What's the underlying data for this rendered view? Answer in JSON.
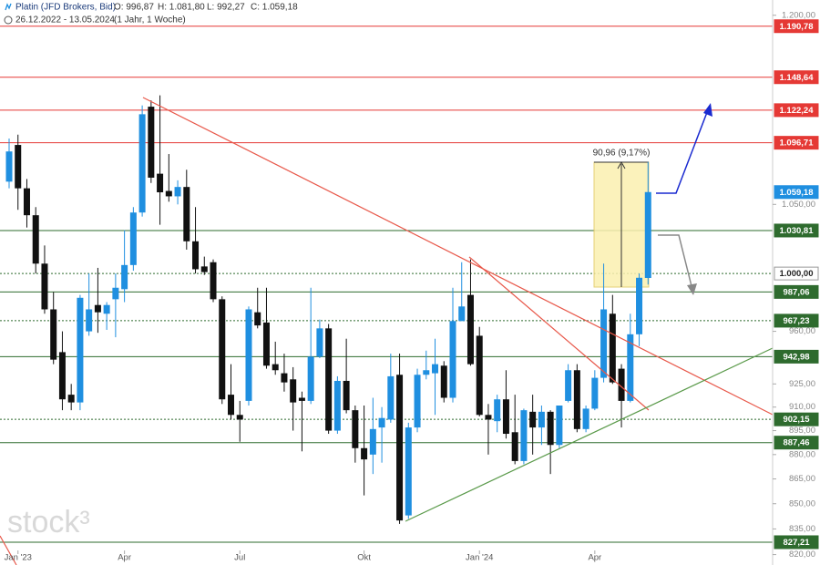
{
  "header": {
    "title": "Platin (JFD Brokers, Bid)",
    "open": "O: 996,87",
    "high": "H: 1.081,80",
    "low": "L: 992,27",
    "close": "C: 1.059,18",
    "range": "26.12.2022 - 13.05.2024",
    "period": "(1 Jahr, 1 Woche)"
  },
  "watermark": "stock³",
  "measure_label": "90,96 (9,17%)",
  "chart_data": {
    "type": "candlestick",
    "log_scale": true,
    "grid": false,
    "up_color": "#1f8fe0",
    "down_color": "#111111",
    "open": [
      1067,
      1095,
      1062,
      1042,
      1007,
      975,
      946,
      918,
      913,
      960,
      978,
      972,
      982,
      989,
      1006,
      1044,
      1125,
      1073,
      1060,
      1056,
      1063,
      1023,
      1005,
      1008,
      982,
      918,
      905,
      914,
      973,
      966,
      938,
      932,
      928,
      916,
      914,
      943,
      962,
      895,
      927,
      908,
      884,
      880,
      897,
      902,
      931,
      843,
      897,
      931,
      932,
      937,
      916,
      967,
      985,
      957,
      905,
      901,
      915,
      894,
      876,
      907,
      897,
      907,
      886,
      914,
      934,
      896,
      909,
      929,
      972,
      935,
      914,
      958,
      996.87
    ],
    "high": [
      1100,
      1103,
      1069,
      1048,
      1020,
      987,
      960,
      925,
      985,
      1000,
      1004,
      980,
      1000,
      1031,
      1048,
      1126,
      1130,
      1134,
      1088,
      1068,
      1076,
      1048,
      1012,
      1010,
      984,
      938,
      914,
      977,
      990,
      990,
      953,
      945,
      936,
      920,
      990,
      968,
      965,
      930,
      955,
      911,
      911,
      916,
      910,
      945,
      945,
      900,
      935,
      947,
      955,
      940,
      990,
      1008,
      1010,
      963,
      912,
      918,
      934,
      918,
      909,
      918,
      911,
      908,
      911,
      938,
      938,
      911,
      934,
      1007,
      985,
      938,
      972,
      1000,
      1081.8
    ],
    "low": [
      1062,
      1046,
      1033,
      1000,
      972,
      938,
      908,
      908,
      908,
      957,
      959,
      961,
      956,
      980,
      1002,
      1041,
      1066,
      1035,
      1052,
      1050,
      1017,
      1000,
      999,
      980,
      912,
      902,
      888,
      911,
      962,
      935,
      931,
      920,
      895,
      882,
      912,
      942,
      893,
      893,
      906,
      875,
      855,
      868,
      875,
      900,
      838,
      841,
      894,
      928,
      905,
      913,
      913,
      967,
      937,
      904,
      880,
      894,
      890,
      874,
      874,
      880,
      886,
      868,
      884,
      913,
      894,
      894,
      908,
      926,
      925,
      897,
      913,
      950,
      992.27
    ],
    "close": [
      1090,
      1062,
      1042,
      1007,
      975,
      941,
      915,
      913,
      983,
      975,
      973,
      978,
      990,
      1006,
      1044,
      1119,
      1070,
      1059,
      1056,
      1063,
      1023,
      1003,
      1001,
      982,
      915,
      905,
      902,
      975,
      964,
      937,
      934,
      926,
      913,
      914,
      943,
      962,
      895,
      927,
      908,
      884,
      877,
      896,
      903,
      930,
      840,
      897,
      931,
      934,
      938,
      916,
      967,
      977,
      938,
      905,
      902,
      915,
      893,
      876,
      908,
      897,
      907,
      886,
      911,
      934,
      896,
      909,
      929,
      975,
      926,
      914,
      958,
      997,
      1059.18
    ],
    "ylim": [
      814,
      1213
    ],
    "yticks": [
      {
        "value": 1200,
        "label": "1.200,00"
      },
      {
        "value": 1050,
        "label": "1.050,00"
      },
      {
        "value": 960,
        "label": "960,00"
      },
      {
        "value": 925,
        "label": "925,00"
      },
      {
        "value": 910,
        "label": "910,00"
      },
      {
        "value": 895,
        "label": "895,00"
      },
      {
        "value": 880,
        "label": "880,00"
      },
      {
        "value": 865,
        "label": "865,00"
      },
      {
        "value": 850,
        "label": "850,00"
      },
      {
        "value": 835,
        "label": "835,00"
      },
      {
        "value": 820,
        "label": "820,00"
      }
    ],
    "xticks": [
      {
        "value": 1,
        "label": "Jan '23"
      },
      {
        "value": 13,
        "label": "Apr"
      },
      {
        "value": 26,
        "label": "Jul"
      },
      {
        "value": 40,
        "label": "Okt"
      },
      {
        "value": 53,
        "label": "Jan '24"
      },
      {
        "value": 66,
        "label": "Apr"
      }
    ],
    "levels": [
      {
        "value": 1190.78,
        "label": "1.190,78",
        "color": "#e53935",
        "style": "solid"
      },
      {
        "value": 1148.64,
        "label": "1.148,64",
        "color": "#e53935",
        "style": "solid"
      },
      {
        "value": 1122.24,
        "label": "1.122,24",
        "color": "#e53935",
        "style": "solid"
      },
      {
        "value": 1096.71,
        "label": "1.096,71",
        "color": "#e53935",
        "style": "solid"
      },
      {
        "value": 1059.18,
        "label": "1.059,18",
        "color": "#1f8fe0",
        "style": "none"
      },
      {
        "value": 1030.81,
        "label": "1.030,81",
        "color": "#2e6b2e",
        "style": "solid"
      },
      {
        "value": 1000.0,
        "label": "1.000,00",
        "color": "#2e6b2e",
        "style": "dotted"
      },
      {
        "value": 987.06,
        "label": "987,06",
        "color": "#2e6b2e",
        "style": "solid"
      },
      {
        "value": 967.23,
        "label": "967,23",
        "color": "#2e6b2e",
        "style": "dotted"
      },
      {
        "value": 942.98,
        "label": "942,98",
        "color": "#2e6b2e",
        "style": "solid"
      },
      {
        "value": 902.15,
        "label": "902,15",
        "color": "#2e6b2e",
        "style": "dotted"
      },
      {
        "value": 887.46,
        "label": "887,46",
        "color": "#2e6b2e",
        "style": "solid"
      },
      {
        "value": 827.21,
        "label": "827,21",
        "color": "#2e6b2e",
        "style": "solid"
      }
    ]
  }
}
